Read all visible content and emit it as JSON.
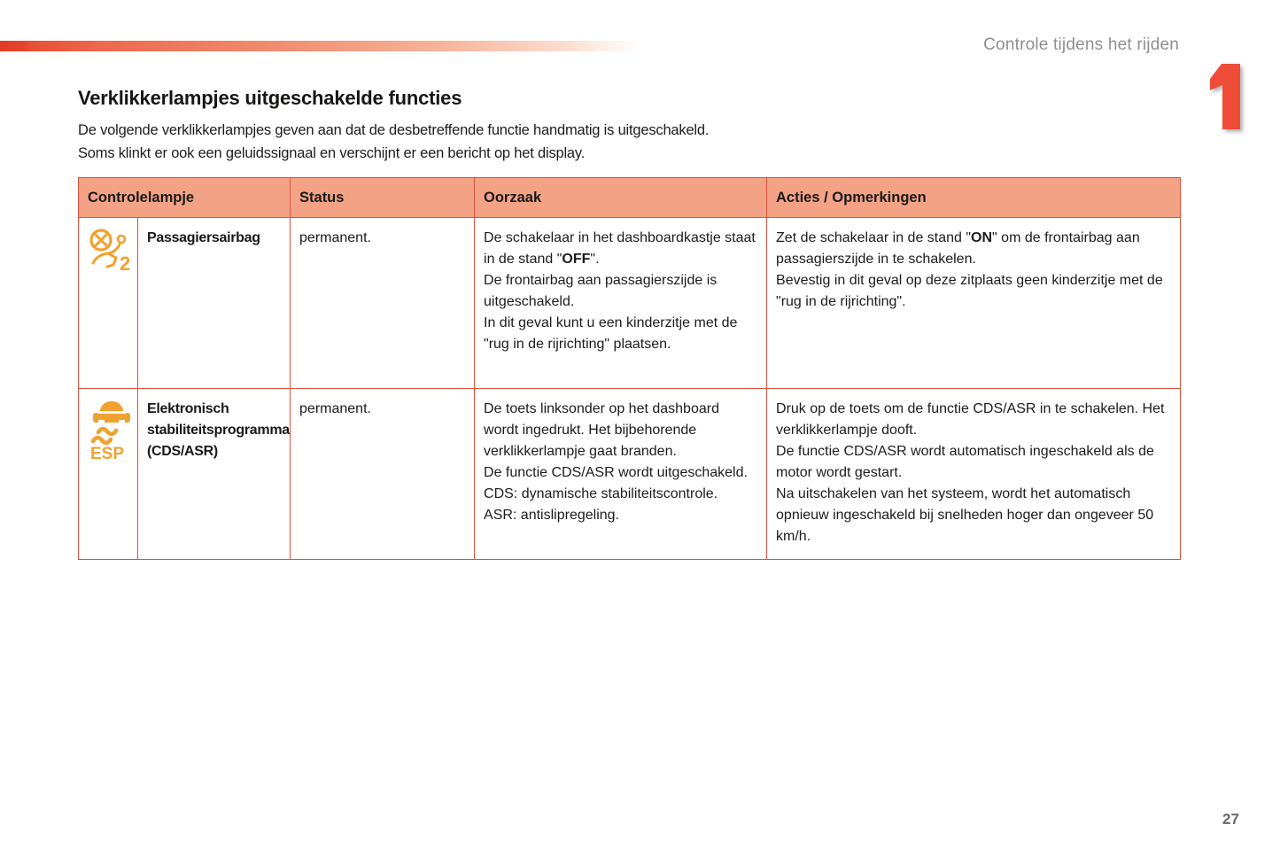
{
  "page": {
    "running_header": "Controle tijdens het rijden",
    "chapter_number": "1",
    "page_number": "27"
  },
  "content": {
    "title": "Verklikkerlampjes uitgeschakelde functies",
    "intro_lines": [
      "De volgende verklikkerlampjes geven aan dat de desbetreffende functie handmatig is uitgeschakeld.",
      "Soms klinkt er ook een geluidssignaal en verschijnt er een bericht op het display."
    ]
  },
  "table": {
    "headers": [
      "Controlelampje",
      "Status",
      "Oorzaak",
      "Acties / Opmerkingen"
    ],
    "rows": [
      {
        "icon": "passenger-airbag-off-icon",
        "name_lines": [
          "Passagiersairbag"
        ],
        "status": "permanent.",
        "cause_lines": [
          "De schakelaar in het dashboardkastje staat in de stand \"**OFF**\".",
          "De frontairbag aan passagierszijde is uitgeschakeld.",
          "In dit geval kunt u een kinderzitje met de \"rug in de rijrichting\" plaatsen."
        ],
        "actions_lines": [
          "Zet de schakelaar in de stand \"**ON**\" om de frontairbag aan passagierszijde in te schakelen.",
          "Bevestig in dit geval op deze zitplaats geen kinderzitje met de \"rug in de rijrichting\"."
        ]
      },
      {
        "icon": "esp-off-icon",
        "name_lines": [
          "Elektronisch",
          "stabiliteitsprogramma",
          " (CDS/ASR)"
        ],
        "status": "permanent.",
        "cause_lines": [
          "De toets linksonder op het dashboard wordt ingedrukt. Het bijbehorende verklikkerlampje gaat branden.",
          "De functie CDS/ASR wordt uitgeschakeld.",
          "CDS: dynamische stabiliteitscontrole.",
          "ASR: antislipregeling."
        ],
        "actions_lines": [
          "Druk op de toets om de functie CDS/ASR in te schakelen. Het verklikkerlampje dooft.",
          "De functie CDS/ASR wordt automatisch ingeschakeld als de motor wordt gestart.",
          "Na uitschakelen van het systeem, wordt het automatisch opnieuw ingeschakeld bij snelheden hoger dan ongeveer 50 km/h."
        ]
      }
    ]
  },
  "colors": {
    "table_border": "#dd5140",
    "header_bg": "#f4a286",
    "name_cell_bg": "#fbddcc",
    "icon_orange": "#efa22e",
    "chapter_red": "#ee4c38",
    "running_header_gray": "#8f8f8f"
  },
  "icons": [
    "passenger-airbag-off-icon",
    "esp-off-icon"
  ]
}
